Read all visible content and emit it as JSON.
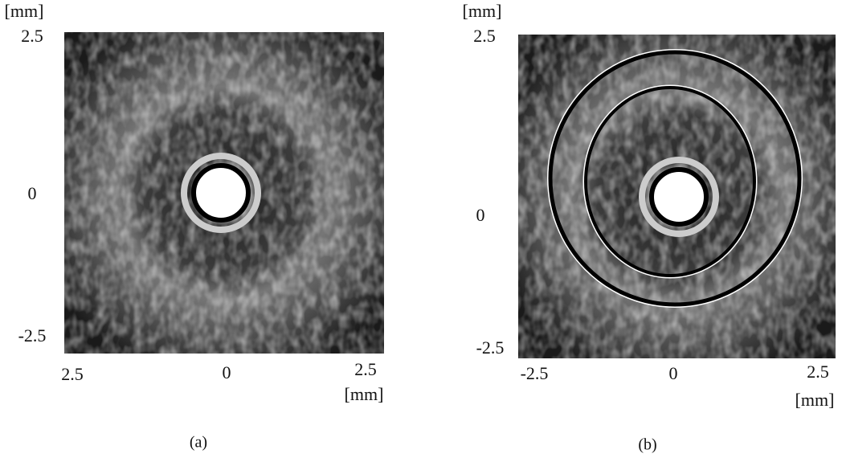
{
  "panels": [
    {
      "y_unit": "[mm]",
      "y_ticks": [
        "2.5",
        "0",
        "-2.5"
      ],
      "x_ticks": [
        "2.5",
        "0",
        "2.5"
      ],
      "x_unit": "[mm]",
      "caption": "(a)"
    },
    {
      "y_unit": "[mm]",
      "y_ticks": [
        "2.5",
        "0",
        "-2.5"
      ],
      "x_ticks": [
        "-2.5",
        "0",
        "2.5"
      ],
      "x_unit": "[mm]",
      "caption": "(b)"
    }
  ]
}
